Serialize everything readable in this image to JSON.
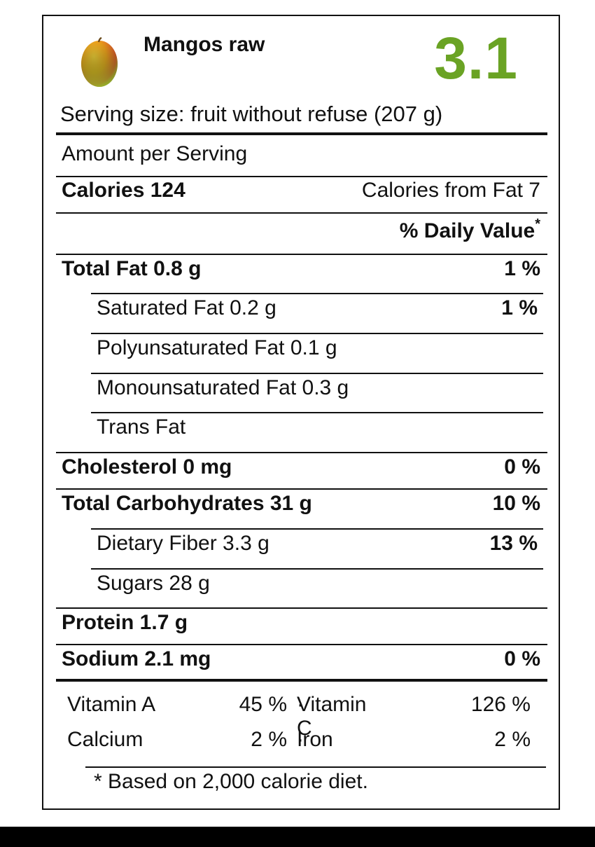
{
  "food": {
    "name": "Mangos raw",
    "score": "3.1",
    "score_color": "#6aa324",
    "icon": "mango-icon"
  },
  "serving": "Serving size: fruit without refuse (207 g)",
  "amount_per_serving": "Amount per Serving",
  "calories": {
    "label": "Calories 124",
    "from_fat": "Calories from Fat 7"
  },
  "daily_value_header": "% Daily Value",
  "daily_value_marker": "*",
  "nutrients": [
    {
      "label": "Total Fat 0.8 g",
      "dv": "1 %"
    },
    {
      "label": "Saturated Fat 0.2 g",
      "dv": "1 %"
    },
    {
      "label": "Polyunsaturated Fat 0.1 g",
      "dv": ""
    },
    {
      "label": "Monounsaturated Fat 0.3 g",
      "dv": ""
    },
    {
      "label": "Trans Fat",
      "dv": ""
    },
    {
      "label": "Cholesterol 0 mg",
      "dv": "0 %"
    },
    {
      "label": "Total Carbohydrates 31 g",
      "dv": "10 %"
    },
    {
      "label": "Dietary Fiber 3.3 g",
      "dv": "13 %"
    },
    {
      "label": "Sugars 28 g",
      "dv": ""
    },
    {
      "label": "Protein 1.7 g",
      "dv": ""
    },
    {
      "label": "Sodium 2.1 mg",
      "dv": "0 %"
    }
  ],
  "vitamins": [
    {
      "name1": "Vitamin A",
      "value1": "45 %",
      "sep": "·",
      "name2": "Vitamin C",
      "value2": "126 %"
    },
    {
      "name1": "Calcium",
      "value1": "2 %",
      "sep": "·",
      "name2": "Iron",
      "value2": "2 %"
    }
  ],
  "footnote": "* Based on 2,000 calorie diet."
}
